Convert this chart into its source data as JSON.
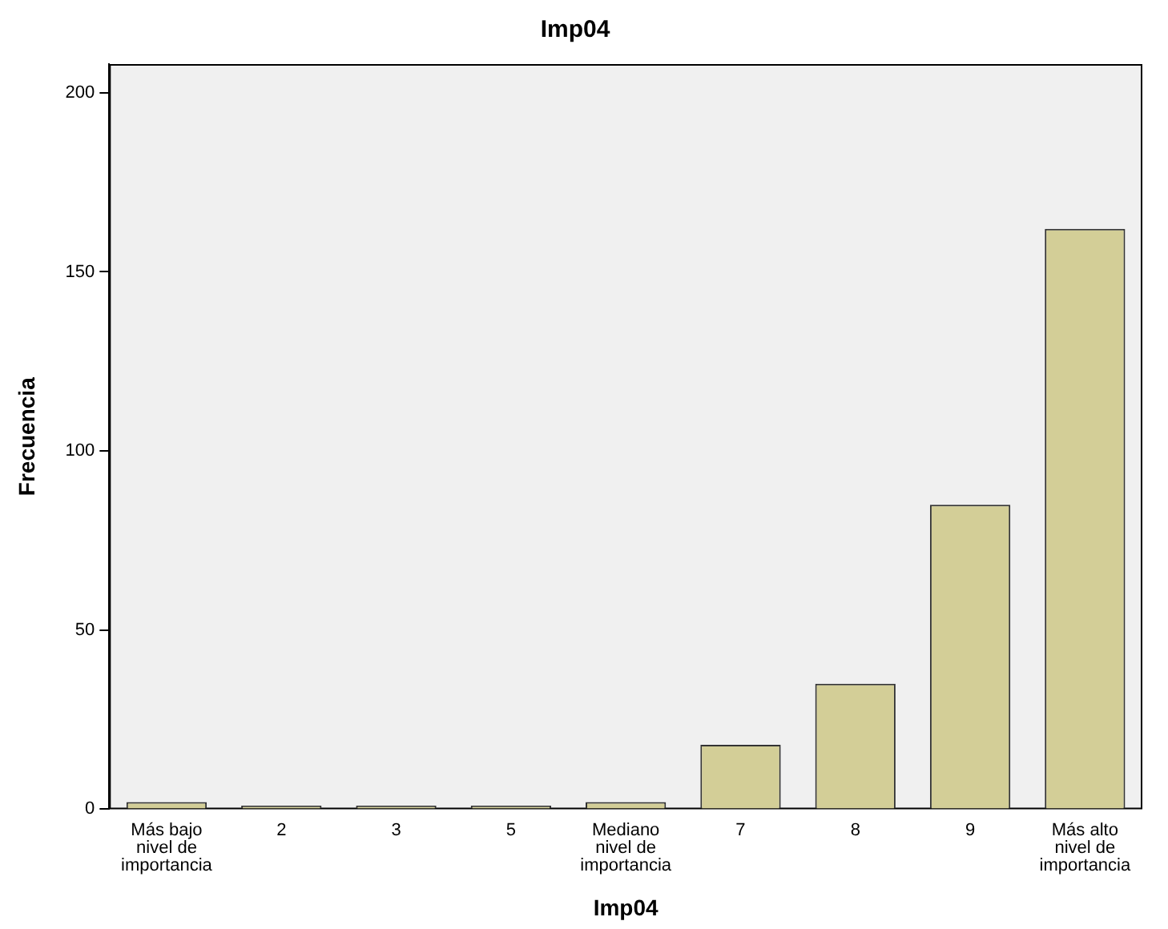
{
  "chart_data": {
    "type": "bar",
    "title": "Imp04",
    "xlabel": "Imp04",
    "ylabel": "Frecuencia",
    "categories": [
      "Más bajo nivel de importancia",
      "2",
      "3",
      "5",
      "Mediano nivel de importancia",
      "7",
      "8",
      "9",
      "Más alto nivel de importancia"
    ],
    "values": [
      2,
      1,
      1,
      1,
      2,
      18,
      35,
      85,
      162
    ],
    "color": "#d3ce97",
    "ylim": [
      0,
      208
    ],
    "yticks": [
      0,
      50,
      100,
      150,
      200
    ],
    "grid": false,
    "legend": false
  }
}
